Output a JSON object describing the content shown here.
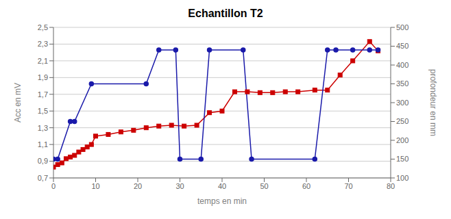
{
  "chart_data": {
    "type": "line",
    "title": "Echantillon T2",
    "xlabel": "temps en min",
    "ylabel": "Acc en mV",
    "y2label": "profondeur en mm",
    "xlim": [
      0,
      80
    ],
    "xticks": [
      0,
      10,
      20,
      30,
      40,
      50,
      60,
      70,
      80
    ],
    "ylim": [
      0.7,
      2.5
    ],
    "yticks": [
      {
        "value": 0.7,
        "label": "0,7"
      },
      {
        "value": 0.9,
        "label": "0,9"
      },
      {
        "value": 1.1,
        "label": "1,1"
      },
      {
        "value": 1.3,
        "label": "1,3"
      },
      {
        "value": 1.5,
        "label": "1,5"
      },
      {
        "value": 1.7,
        "label": "1,7"
      },
      {
        "value": 1.9,
        "label": "1,9"
      },
      {
        "value": 2.1,
        "label": "2,1"
      },
      {
        "value": 2.3,
        "label": "2,3"
      },
      {
        "value": 2.5,
        "label": "2,5"
      }
    ],
    "y2lim": [
      100,
      500
    ],
    "y2ticks": [
      100,
      150,
      200,
      250,
      300,
      350,
      400,
      450,
      500
    ],
    "grid": true,
    "series": [
      {
        "color": "#cc0000",
        "marker": "square",
        "axis": "y",
        "x": [
          0,
          1,
          2,
          3,
          4,
          5,
          6,
          7,
          8,
          9,
          10,
          13,
          16,
          19,
          22,
          25,
          28,
          31,
          34,
          37,
          40,
          43,
          46,
          49,
          52,
          55,
          58,
          62,
          65,
          68,
          71,
          75,
          77
        ],
        "values": [
          0.83,
          0.86,
          0.88,
          0.93,
          0.95,
          0.97,
          1.01,
          1.04,
          1.07,
          1.1,
          1.2,
          1.22,
          1.25,
          1.27,
          1.3,
          1.32,
          1.33,
          1.32,
          1.33,
          1.48,
          1.5,
          1.73,
          1.73,
          1.72,
          1.72,
          1.73,
          1.73,
          1.75,
          1.75,
          1.93,
          2.1,
          2.33,
          2.22
        ]
      },
      {
        "color": "#1a1aaa",
        "marker": "circle",
        "axis": "y2",
        "x": [
          0,
          1,
          4,
          5,
          9,
          22,
          25,
          29,
          30,
          35,
          37,
          45,
          47,
          62,
          65,
          67,
          71,
          75,
          77
        ],
        "values": [
          150,
          150,
          250,
          250,
          350,
          350,
          440,
          440,
          150,
          150,
          440,
          440,
          150,
          150,
          440,
          440,
          440,
          440,
          440
        ]
      }
    ]
  }
}
